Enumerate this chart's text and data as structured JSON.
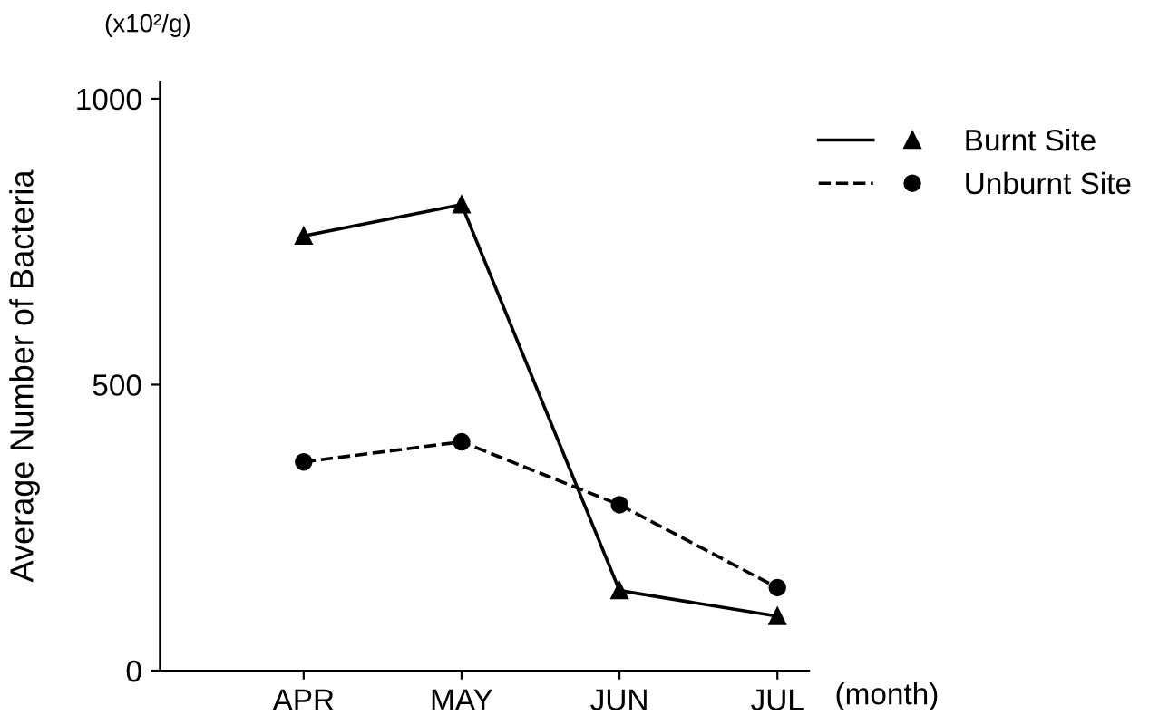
{
  "chart_data": {
    "type": "line",
    "ylabel": "Average Number of Bacteria",
    "xlabel": "(month)",
    "annotations": [
      "(x10²/g)"
    ],
    "categories": [
      "APR",
      "MAY",
      "JUN",
      "JUL"
    ],
    "series": [
      {
        "name": "Burnt Site",
        "color": "#000000",
        "values": [
          760,
          815,
          140,
          95
        ],
        "marker": "triangle",
        "line_style": "solid"
      },
      {
        "name": "Unburnt Site",
        "color": "#000000",
        "values": [
          365,
          400,
          290,
          145
        ],
        "marker": "circle",
        "line_style": "dashed"
      }
    ],
    "ylim": [
      0,
      1030
    ],
    "yticks": [
      0,
      500,
      1000
    ],
    "grid": false,
    "legend": "top right"
  }
}
